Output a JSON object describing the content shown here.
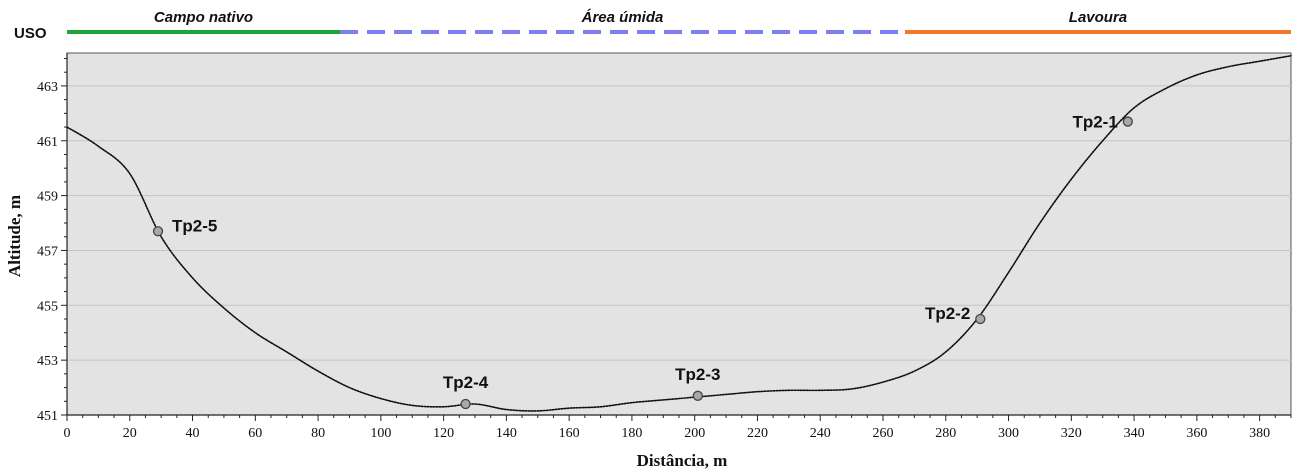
{
  "chart_data": {
    "type": "line",
    "xlabel": "Distância, m",
    "ylabel": "Altitude, m",
    "xlim": [
      0,
      390
    ],
    "ylim": [
      451,
      464.2
    ],
    "x_ticks": [
      0,
      20,
      40,
      60,
      80,
      100,
      120,
      140,
      160,
      180,
      200,
      220,
      240,
      260,
      280,
      300,
      320,
      340,
      360,
      380
    ],
    "y_ticks": [
      451,
      453,
      455,
      457,
      459,
      461,
      463
    ],
    "grid": "horizontal",
    "background": "#e3e3e3",
    "line_color": "#111111",
    "profile": {
      "x": [
        0,
        10,
        20,
        30,
        40,
        50,
        60,
        70,
        80,
        90,
        100,
        110,
        120,
        130,
        140,
        150,
        160,
        170,
        180,
        190,
        200,
        210,
        220,
        230,
        240,
        250,
        260,
        270,
        280,
        290,
        300,
        310,
        320,
        330,
        340,
        350,
        360,
        370,
        380,
        390
      ],
      "y": [
        461.5,
        460.8,
        459.8,
        457.5,
        456.0,
        454.9,
        454.0,
        453.3,
        452.6,
        452.0,
        451.6,
        451.35,
        451.3,
        451.4,
        451.2,
        451.15,
        451.25,
        451.3,
        451.45,
        451.55,
        451.65,
        451.75,
        451.85,
        451.9,
        451.9,
        451.95,
        452.2,
        452.6,
        453.3,
        454.5,
        456.2,
        458.0,
        459.6,
        461.0,
        462.2,
        462.9,
        463.4,
        463.7,
        463.9,
        464.1
      ]
    },
    "points": [
      {
        "label": "Tp2-1",
        "x": 338,
        "y": 461.7
      },
      {
        "label": "Tp2-2",
        "x": 291,
        "y": 454.5
      },
      {
        "label": "Tp2-3",
        "x": 201,
        "y": 451.7
      },
      {
        "label": "Tp2-4",
        "x": 127,
        "y": 451.4
      },
      {
        "label": "Tp2-5",
        "x": 29,
        "y": 457.7
      }
    ],
    "land_use": {
      "title": "USO",
      "segments": [
        {
          "label": "Campo nativo",
          "x_start": 0,
          "x_end": 87,
          "color": "#1fa33a",
          "style": "solid"
        },
        {
          "label": "Área úmida",
          "x_start": 87,
          "x_end": 267,
          "color": "#7b7ff0",
          "style": "dashed"
        },
        {
          "label": "Lavoura",
          "x_start": 267,
          "x_end": 390,
          "color": "#f07828",
          "style": "solid"
        }
      ]
    }
  }
}
